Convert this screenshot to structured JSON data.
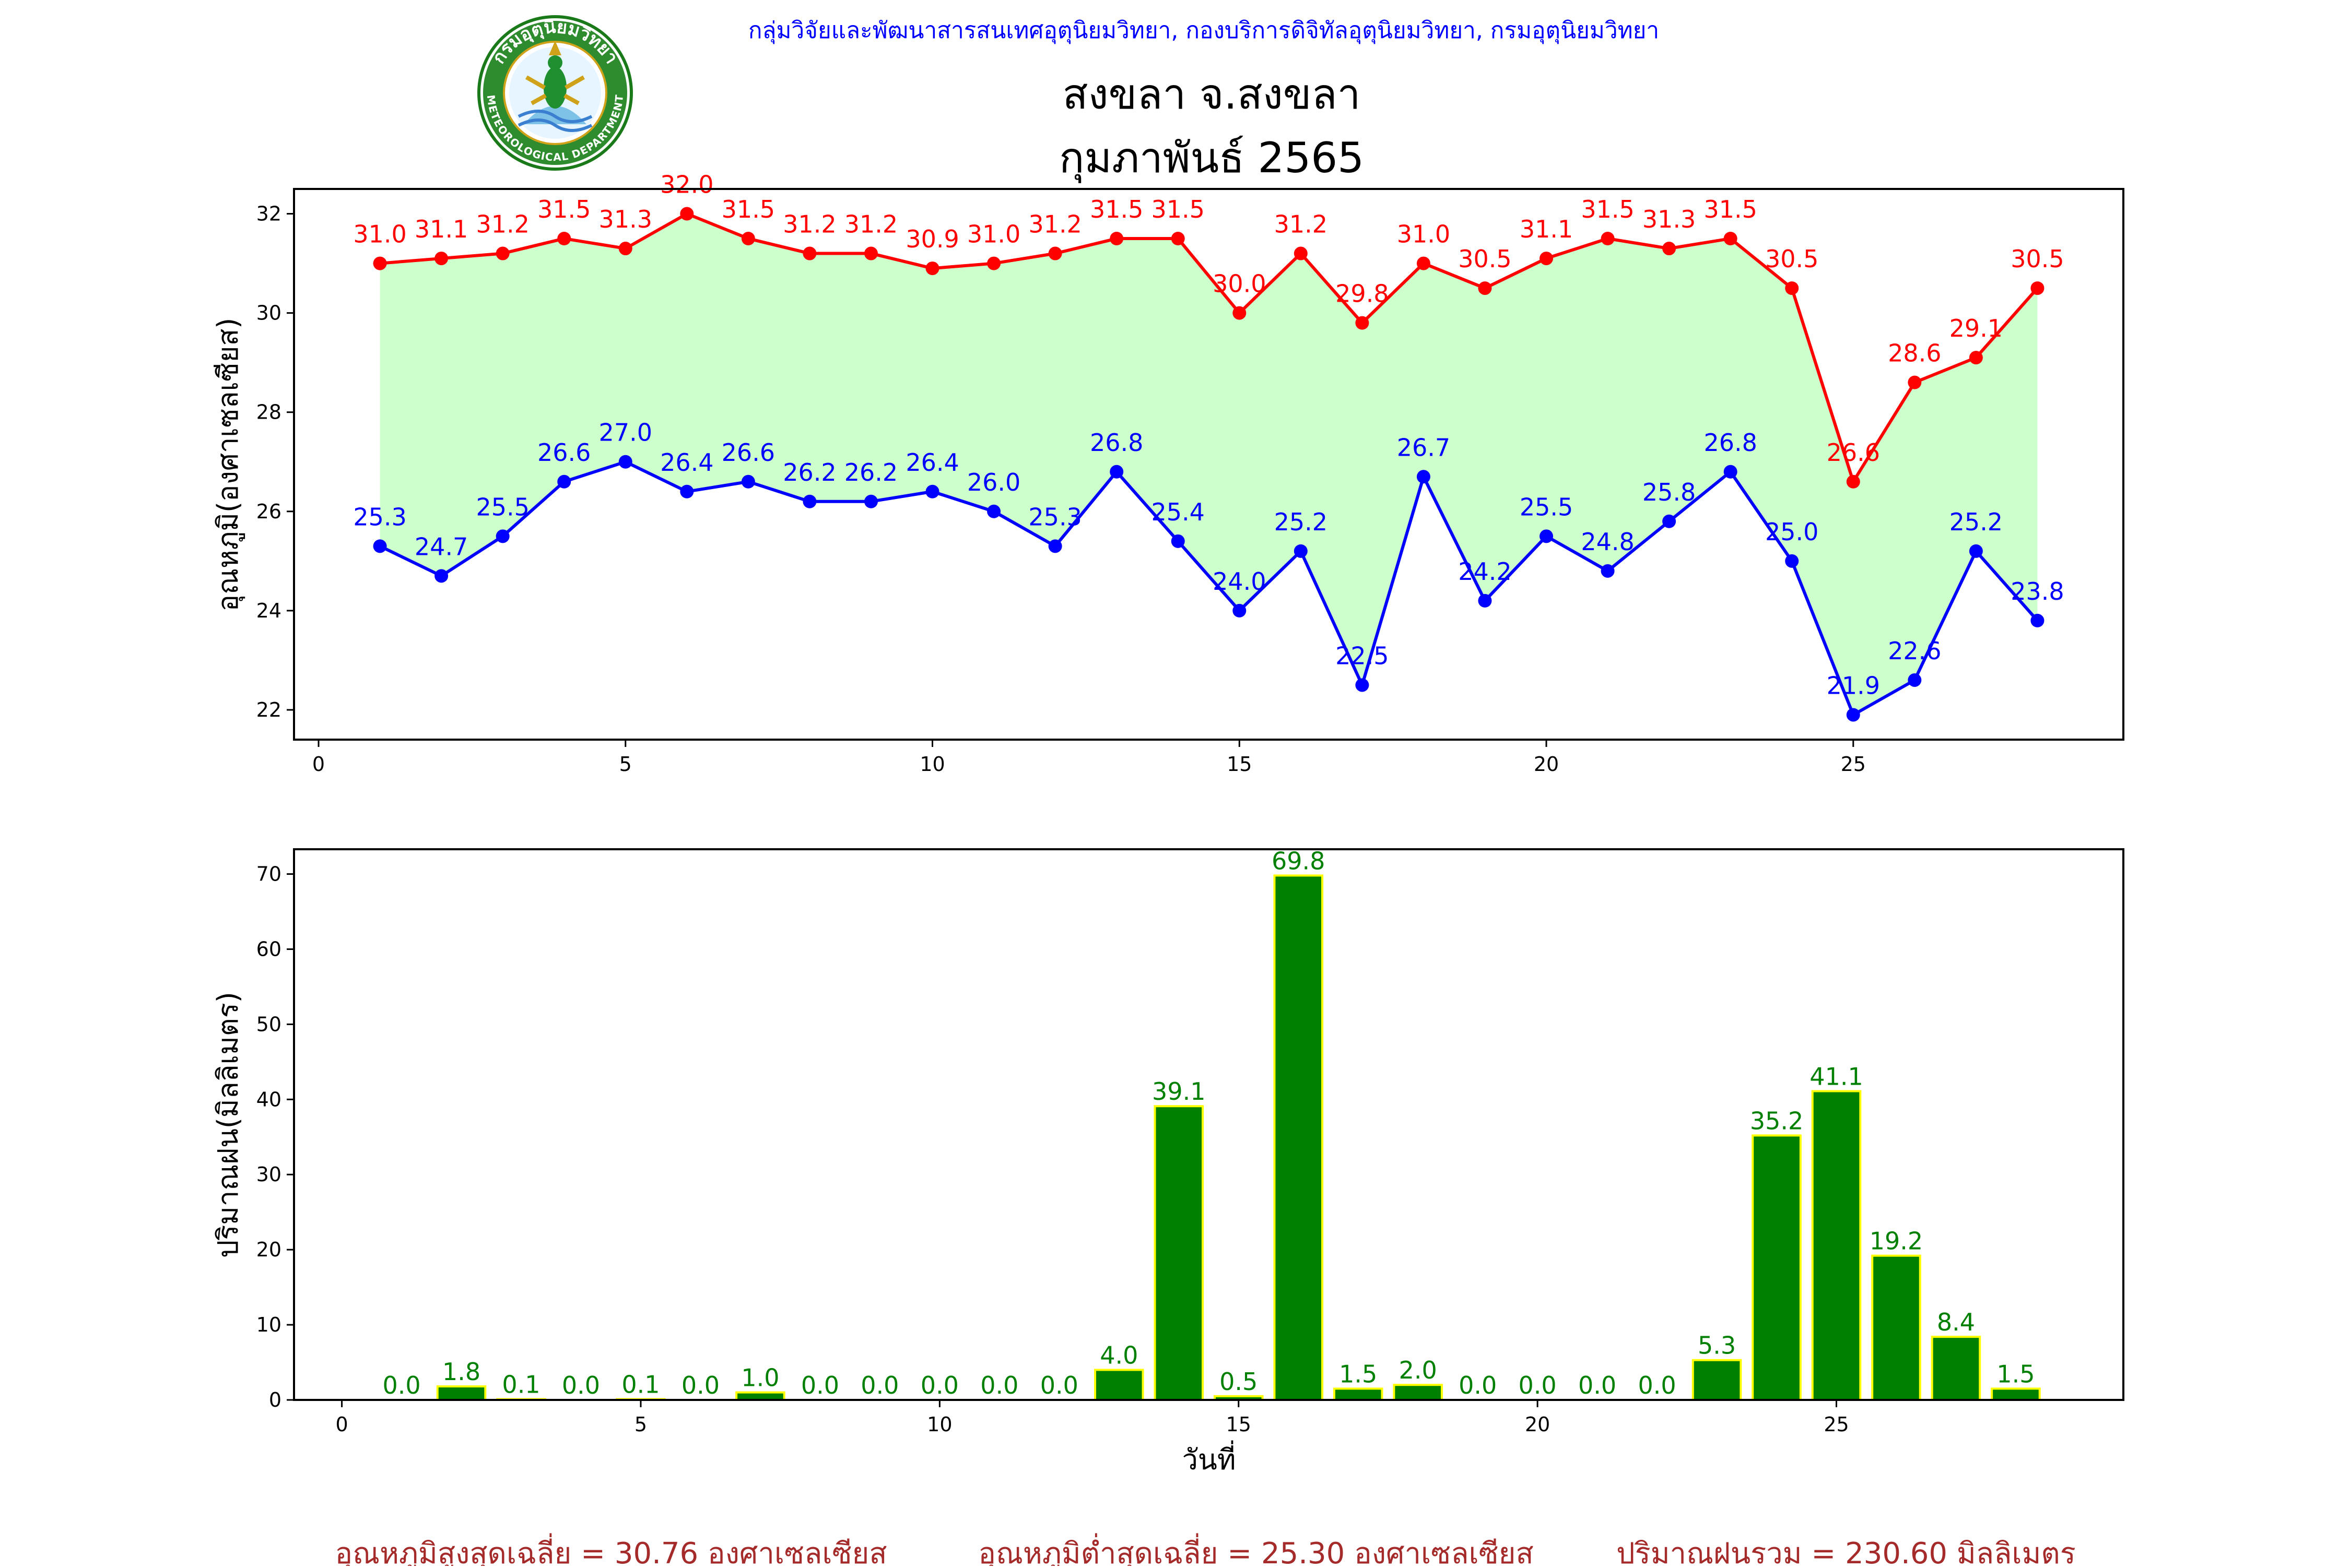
{
  "header": {
    "organization": "กลุ่มวิจัยและพัฒนาสารสนเทศอุตุนิยมวิทยา, กองบริการดิจิทัลอุตุนิยมวิทยา, กรมอุตุนิยมวิทยา",
    "station": "สงขลา จ.สงขลา",
    "period": "กุมภาพันธ์ 2565",
    "logo_text": "กรมอุตุนิยมวิทยา",
    "logo_text_en": "METEOROLOGICAL DEPARTMENT"
  },
  "colors": {
    "max_temp": "#ff0000",
    "min_temp": "#0000ff",
    "fill": "#ccffcc",
    "rain_bar": "#008000",
    "rain_edge": "#ffff00",
    "rain_label": "#008000",
    "header_org": "#0000ff",
    "summary": "#a52a2a"
  },
  "chart_data": [
    {
      "type": "line",
      "ylabel": "อุณหภูมิ(องศาเซลเซียส)",
      "xlabel": "",
      "xlim": [
        -0.4,
        29.4
      ],
      "ylim": [
        21.4,
        32.5
      ],
      "xticks": [
        0,
        5,
        10,
        15,
        20,
        25
      ],
      "yticks": [
        22,
        24,
        26,
        28,
        30,
        32
      ],
      "x": [
        1,
        2,
        3,
        4,
        5,
        6,
        7,
        8,
        9,
        10,
        11,
        12,
        13,
        14,
        15,
        16,
        17,
        18,
        19,
        20,
        21,
        22,
        23,
        24,
        25,
        26,
        27,
        28
      ],
      "series": [
        {
          "key": "max",
          "values": [
            31.0,
            31.1,
            31.2,
            31.5,
            31.3,
            32.0,
            31.5,
            31.2,
            31.2,
            30.9,
            31.0,
            31.2,
            31.5,
            31.5,
            30.0,
            31.2,
            29.8,
            31.0,
            30.5,
            31.1,
            31.5,
            31.3,
            31.5,
            30.5,
            26.6,
            28.6,
            29.1,
            30.5
          ]
        },
        {
          "key": "min",
          "values": [
            25.3,
            24.7,
            25.5,
            26.6,
            27.0,
            26.4,
            26.6,
            26.2,
            26.2,
            26.4,
            26.0,
            25.3,
            26.8,
            25.4,
            24.0,
            25.2,
            22.5,
            26.7,
            24.2,
            25.5,
            24.8,
            25.8,
            26.8,
            25.0,
            21.9,
            22.6,
            25.2,
            23.8
          ]
        }
      ]
    },
    {
      "type": "bar",
      "ylabel": "ปริมาณฝน(มิลลิเมตร)",
      "xlabel": "วันที่",
      "xlim": [
        -0.8,
        29.8
      ],
      "ylim": [
        0,
        73.3
      ],
      "xticks": [
        0,
        5,
        10,
        15,
        20,
        25
      ],
      "yticks": [
        0,
        10,
        20,
        30,
        40,
        50,
        60,
        70
      ],
      "x": [
        1,
        2,
        3,
        4,
        5,
        6,
        7,
        8,
        9,
        10,
        11,
        12,
        13,
        14,
        15,
        16,
        17,
        18,
        19,
        20,
        21,
        22,
        23,
        24,
        25,
        26,
        27,
        28
      ],
      "values": [
        0.0,
        1.8,
        0.1,
        0.0,
        0.1,
        0.0,
        1.0,
        0.0,
        0.0,
        0.0,
        0.0,
        0.0,
        4.0,
        39.1,
        0.5,
        69.8,
        1.5,
        2.0,
        0.0,
        0.0,
        0.0,
        0.0,
        5.3,
        35.2,
        41.1,
        19.2,
        8.4,
        1.5
      ]
    }
  ],
  "summary": {
    "avg_max": "อุณหภูมิสูงสุดเฉลี่ย = 30.76 องศาเซลเซียส",
    "avg_min": "อุณหภูมิต่ำสุดเฉลี่ย = 25.30 องศาเซลเซียส",
    "total_rain": "ปริมาณฝนรวม = 230.60 มิลลิเมตร"
  }
}
